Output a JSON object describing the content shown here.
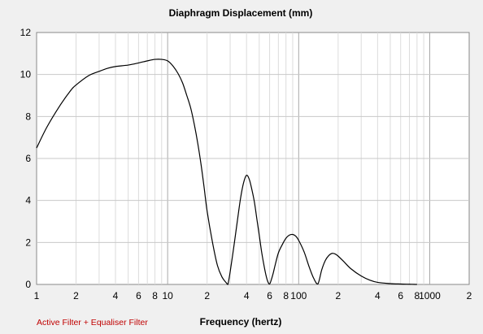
{
  "chart_data": {
    "type": "line",
    "title": "Diaphragm Displacement (mm)",
    "xlabel": "Frequency (hertz)",
    "ylabel": "",
    "x_scale": "log",
    "xlim": [
      1,
      2000
    ],
    "ylim": [
      0,
      12
    ],
    "grid": true,
    "x_tick_labels": [
      {
        "value": 1,
        "label": "1"
      },
      {
        "value": 2,
        "label": "2"
      },
      {
        "value": 4,
        "label": "4"
      },
      {
        "value": 6,
        "label": "6"
      },
      {
        "value": 8,
        "label": "8"
      },
      {
        "value": 10,
        "label": "10"
      },
      {
        "value": 20,
        "label": "2"
      },
      {
        "value": 40,
        "label": "4"
      },
      {
        "value": 60,
        "label": "6"
      },
      {
        "value": 80,
        "label": "8"
      },
      {
        "value": 100,
        "label": "100"
      },
      {
        "value": 200,
        "label": "2"
      },
      {
        "value": 400,
        "label": "4"
      },
      {
        "value": 600,
        "label": "6"
      },
      {
        "value": 800,
        "label": "8"
      },
      {
        "value": 1000,
        "label": "1000"
      },
      {
        "value": 2000,
        "label": "2"
      }
    ],
    "y_ticks": [
      0,
      2,
      4,
      6,
      8,
      10,
      12
    ],
    "series": [
      {
        "color": "#000000",
        "x": [
          1,
          1.2,
          1.5,
          1.8,
          2,
          2.5,
          3,
          3.5,
          4,
          5,
          6,
          7,
          8,
          9,
          10,
          11,
          12,
          13,
          14,
          15,
          16,
          17,
          18,
          19,
          20,
          22,
          24,
          26,
          28,
          28.8,
          30,
          32,
          34,
          36,
          38,
          40,
          42,
          44,
          46,
          48,
          50,
          52,
          54,
          56,
          58,
          60,
          62,
          64,
          66,
          70,
          75,
          80,
          85,
          90,
          95,
          100,
          110,
          120,
          130,
          140,
          150,
          160,
          170,
          180,
          190,
          200,
          220,
          250,
          300,
          350,
          400,
          500,
          600,
          700,
          800
        ],
        "y": [
          6.5,
          7.5,
          8.5,
          9.2,
          9.5,
          9.95,
          10.15,
          10.3,
          10.38,
          10.45,
          10.55,
          10.65,
          10.72,
          10.72,
          10.65,
          10.4,
          10.05,
          9.6,
          9.0,
          8.4,
          7.6,
          6.7,
          5.7,
          4.6,
          3.5,
          2.0,
          0.9,
          0.35,
          0.08,
          0.0,
          0.6,
          1.8,
          3.0,
          4.1,
          4.85,
          5.2,
          5.0,
          4.5,
          3.9,
          3.1,
          2.35,
          1.6,
          1.0,
          0.5,
          0.15,
          0.02,
          0.25,
          0.55,
          0.9,
          1.5,
          1.9,
          2.2,
          2.35,
          2.38,
          2.3,
          2.1,
          1.55,
          0.85,
          0.3,
          0.02,
          0.7,
          1.15,
          1.38,
          1.48,
          1.45,
          1.35,
          1.1,
          0.75,
          0.4,
          0.2,
          0.1,
          0.04,
          0.02,
          0.01,
          0.0
        ]
      }
    ],
    "footer": {
      "text": "Active Filter + Equaliser Filter",
      "color": "#c00000"
    }
  }
}
